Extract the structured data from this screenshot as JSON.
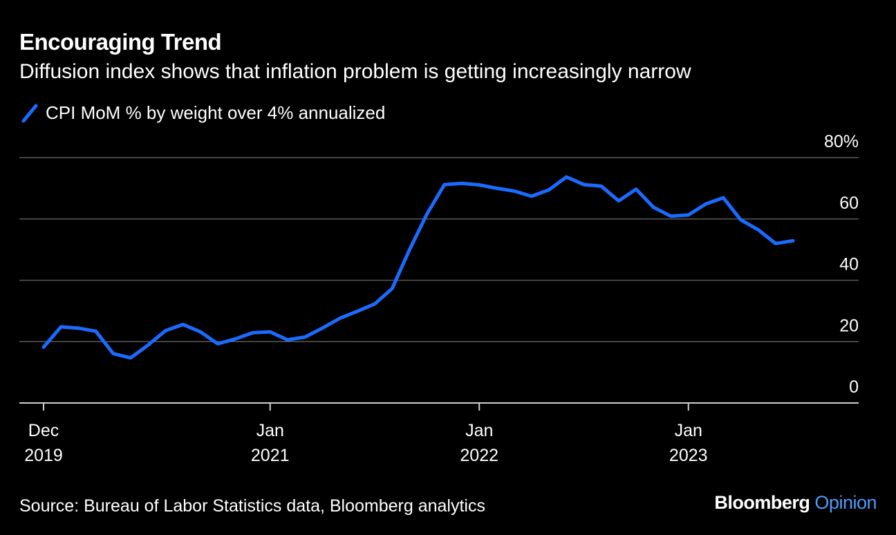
{
  "title": "Encouraging Trend",
  "subtitle": "Diffusion index shows that inflation problem is getting increasingly narrow",
  "source": "Source: Bureau of Labor Statistics data, Bloomberg analytics",
  "brand": {
    "name": "Bloomberg",
    "section": "Opinion"
  },
  "colors": {
    "background": "#000000",
    "line": "#1a6bff",
    "grid": "#5a5a5a",
    "text": "#ffffff",
    "brand_accent": "#4d9bff"
  },
  "chart_data": {
    "type": "line",
    "title": "Encouraging Trend",
    "subtitle": "Diffusion index shows that inflation problem is getting increasingly narrow",
    "ylabel": "",
    "xlabel": "",
    "ylim": [
      0,
      80
    ],
    "y_ticks": [
      0,
      20,
      40,
      60,
      80
    ],
    "y_tick_labels": [
      "0",
      "20",
      "40",
      "60",
      "80%"
    ],
    "x_ticks": [
      {
        "date": "2019-12",
        "line1": "Dec",
        "line2": "2019"
      },
      {
        "date": "2021-01",
        "line1": "Jan",
        "line2": "2021"
      },
      {
        "date": "2022-01",
        "line1": "Jan",
        "line2": "2022"
      },
      {
        "date": "2023-01",
        "line1": "Jan",
        "line2": "2023"
      }
    ],
    "grid": true,
    "legend_position": "top-left",
    "series": [
      {
        "name": "CPI MoM % by weight over 4% annualized",
        "x": [
          "2019-12",
          "2020-01",
          "2020-02",
          "2020-03",
          "2020-04",
          "2020-05",
          "2020-06",
          "2020-07",
          "2020-08",
          "2020-09",
          "2020-10",
          "2020-11",
          "2020-12",
          "2021-01",
          "2021-02",
          "2021-03",
          "2021-04",
          "2021-05",
          "2021-06",
          "2021-07",
          "2021-08",
          "2021-09",
          "2021-10",
          "2021-11",
          "2021-12",
          "2022-01",
          "2022-02",
          "2022-03",
          "2022-04",
          "2022-05",
          "2022-06",
          "2022-07",
          "2022-08",
          "2022-09",
          "2022-10",
          "2022-11",
          "2022-12",
          "2023-01",
          "2023-02",
          "2023-03",
          "2023-04",
          "2023-05",
          "2023-06",
          "2023-07"
        ],
        "values": [
          18.2,
          24.8,
          24.4,
          23.4,
          16.1,
          14.7,
          18.9,
          23.6,
          25.6,
          23.2,
          19.3,
          20.9,
          22.9,
          23.2,
          20.6,
          21.5,
          24.4,
          27.6,
          29.9,
          32.3,
          37.3,
          50.0,
          61.6,
          71.2,
          71.6,
          71.1,
          70.0,
          69.1,
          67.4,
          69.5,
          73.7,
          71.2,
          70.7,
          65.9,
          69.7,
          63.8,
          60.9,
          61.3,
          64.9,
          66.9,
          59.7,
          56.5,
          52.0,
          52.9
        ]
      }
    ]
  }
}
